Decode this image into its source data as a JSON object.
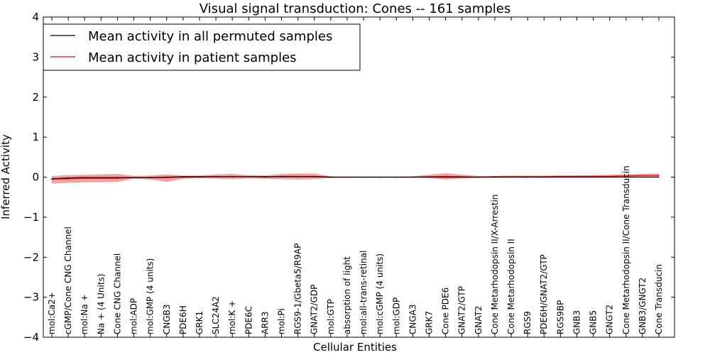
{
  "chart_data": {
    "type": "line",
    "title": "Visual signal transduction: Cones -- 161 samples",
    "xlabel": "Cellular Entities",
    "ylabel": "Inferred Activity",
    "ylim": [
      -4,
      4
    ],
    "yticks": [
      -4,
      -3,
      -2,
      -1,
      0,
      1,
      2,
      3,
      4
    ],
    "legend_position": "top-left",
    "grid": false,
    "categories": [
      "mol:Ca2+",
      "cGMP/Cone CNG Channel",
      "mol:Na +",
      "Na + (4 Units)",
      "Cone CNG Channel",
      "mol:ADP",
      "mol:GMP (4 units)",
      "CNGB3",
      "PDE6H",
      "GRK1",
      "SLC24A2",
      "mol:K +",
      "PDE6C",
      "ARR3",
      "mol:Pi",
      "RGS9-1/Gbeta5/R9AP",
      "GNAT2/GDP",
      "mol:GTP",
      "absorption of light",
      "mol:all-trans-retinal",
      "mol:cGMP (4 units)",
      "mol:GDP",
      "CNGA3",
      "GRK7",
      "Cone PDE6",
      "GNAT2/GTP",
      "GNAT2",
      "Cone Metarhodopsin II/X-Arrestin",
      "Cone Metarhodopsin II",
      "RGS9",
      "PDE6H/GNAT2/GTP",
      "RGS9BP",
      "GNB3",
      "GNB5",
      "GNGT2",
      "Cone Metarhodopsin II/Cone Transducin",
      "GNB3/GNGT2",
      "Cone Transducin"
    ],
    "series": [
      {
        "name": "Mean activity in all permuted samples",
        "color": "#000000",
        "values": [
          -0.04,
          -0.02,
          -0.01,
          -0.01,
          -0.01,
          -0.01,
          -0.01,
          0.0,
          0.01,
          0.01,
          0.01,
          0.01,
          0.01,
          0.01,
          0.01,
          0.01,
          0.01,
          0.0,
          0.0,
          0.0,
          0.0,
          0.0,
          0.0,
          0.0,
          0.0,
          0.0,
          0.0,
          0.0,
          0.0,
          0.0,
          0.0,
          0.0,
          0.0,
          0.0,
          0.0,
          0.0,
          0.0,
          0.0
        ]
      },
      {
        "name": "Mean activity in patient samples",
        "color": "#ff0000",
        "band_color": "#f08080",
        "values": [
          -0.05,
          -0.04,
          -0.03,
          -0.03,
          -0.03,
          -0.01,
          -0.01,
          -0.01,
          0.0,
          0.0,
          0.01,
          0.01,
          0.01,
          0.0,
          0.02,
          0.02,
          0.02,
          0.0,
          0.0,
          0.0,
          0.0,
          0.0,
          0.0,
          0.01,
          0.02,
          0.01,
          0.0,
          0.01,
          0.01,
          0.01,
          0.01,
          0.02,
          0.02,
          0.02,
          0.02,
          0.03,
          0.04,
          0.04
        ],
        "band_upper": [
          0.03,
          0.05,
          0.06,
          0.07,
          0.08,
          0.03,
          0.04,
          0.07,
          0.04,
          0.04,
          0.07,
          0.08,
          0.05,
          0.04,
          0.08,
          0.09,
          0.09,
          0.02,
          0.01,
          0.01,
          0.01,
          0.01,
          0.02,
          0.06,
          0.1,
          0.06,
          0.03,
          0.03,
          0.04,
          0.04,
          0.04,
          0.04,
          0.04,
          0.05,
          0.06,
          0.07,
          0.08,
          0.09
        ],
        "band_lower": [
          -0.16,
          -0.14,
          -0.13,
          -0.13,
          -0.12,
          -0.04,
          -0.06,
          -0.12,
          -0.04,
          -0.02,
          -0.04,
          -0.05,
          -0.03,
          -0.04,
          -0.05,
          -0.06,
          -0.05,
          -0.02,
          -0.01,
          -0.01,
          -0.01,
          -0.01,
          -0.01,
          -0.02,
          -0.06,
          -0.03,
          -0.02,
          -0.01,
          -0.01,
          -0.01,
          -0.01,
          0.0,
          0.0,
          0.0,
          0.0,
          0.0,
          0.0,
          0.0
        ]
      }
    ]
  }
}
